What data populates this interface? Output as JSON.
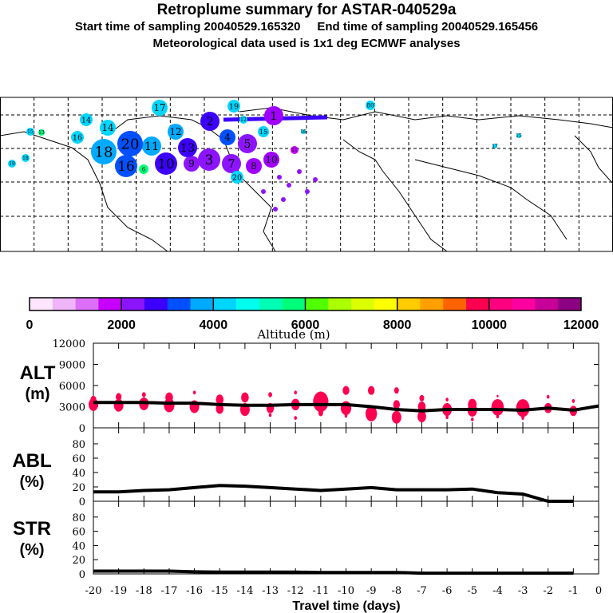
{
  "header": {
    "title": "Retroplume summary for ASTAR-040529a",
    "sampling": "Start time of sampling 20040529.165320     End time of sampling 20040529.165456",
    "met": "Meteorological data used is 1x1 deg ECMWF analyses"
  },
  "map": {
    "markers": [
      "1",
      "2",
      "3",
      "4",
      "5",
      "6",
      "7",
      "8",
      "9",
      "10",
      "11",
      "12",
      "13",
      "14",
      "15",
      "16",
      "17",
      "18",
      "19",
      "20",
      "20",
      "16",
      "18",
      "15",
      "14",
      "12",
      "13",
      "19",
      "80",
      "16",
      "15",
      "17",
      "10",
      "11"
    ]
  },
  "colorbar": {
    "label": "Altitude (m)",
    "ticks": [
      "0",
      "2000",
      "4000",
      "6000",
      "8000",
      "10000",
      "12000"
    ],
    "colors": [
      "#ffe6ff",
      "#f0b4f8",
      "#dc6ef8",
      "#c800ff",
      "#8c14ff",
      "#3c00ff",
      "#0050ff",
      "#00aaff",
      "#00d6ff",
      "#00ffee",
      "#00ffb4",
      "#00ff78",
      "#50ff00",
      "#aaff00",
      "#dcff00",
      "#ffff00",
      "#ffcc00",
      "#ffa000",
      "#ff6400",
      "#ff0050",
      "#ff0080",
      "#ff00a0",
      "#c8009a",
      "#8c0082"
    ]
  },
  "chart_data": [
    {
      "type": "line",
      "panel": "ALT",
      "ylabel": "ALT\n(m)",
      "ylabel_lines": [
        "ALT",
        "(m)"
      ],
      "ylim": [
        0,
        12000
      ],
      "yticks": [
        "0",
        "3000",
        "6000",
        "9000",
        "12000"
      ],
      "x": [
        -20,
        -19,
        -18,
        -17,
        -16,
        -15,
        -14,
        -13,
        -12,
        -11,
        -10,
        -9,
        -8,
        -7,
        -6,
        -5,
        -4,
        -3,
        -2,
        -1,
        0
      ],
      "values": [
        3600,
        3600,
        3600,
        3500,
        3500,
        3300,
        3200,
        3200,
        3300,
        3300,
        3300,
        3000,
        2600,
        2400,
        2600,
        2600,
        2600,
        2500,
        2800,
        2500,
        3100
      ],
      "clusters": [
        [
          -20,
          3300,
          1.0
        ],
        [
          -20,
          4000,
          0.6
        ],
        [
          -19,
          3200,
          1.0
        ],
        [
          -19,
          4400,
          0.6
        ],
        [
          -18,
          3400,
          1.0
        ],
        [
          -18,
          4700,
          0.4
        ],
        [
          -17,
          3200,
          1.1
        ],
        [
          -17,
          4300,
          0.8
        ],
        [
          -16,
          3000,
          1.0
        ],
        [
          -16,
          5000,
          0.3
        ],
        [
          -15,
          2700,
          0.8
        ],
        [
          -15,
          4000,
          0.8
        ],
        [
          -14,
          2600,
          1.0
        ],
        [
          -14,
          4300,
          0.8
        ],
        [
          -13,
          2800,
          0.8
        ],
        [
          -13,
          4700,
          0.4
        ],
        [
          -13,
          1800,
          0.3
        ],
        [
          -12,
          3300,
          0.9
        ],
        [
          -12,
          5000,
          0.3
        ],
        [
          -12,
          1400,
          0.3
        ],
        [
          -11,
          3700,
          1.6
        ],
        [
          -11,
          2100,
          0.5
        ],
        [
          -10,
          2800,
          1.1
        ],
        [
          -10,
          5300,
          0.7
        ],
        [
          -10,
          1700,
          0.3
        ],
        [
          -9,
          2000,
          1.2
        ],
        [
          -9,
          5300,
          0.7
        ],
        [
          -8,
          1500,
          1.0
        ],
        [
          -8,
          3300,
          0.7
        ],
        [
          -8,
          5300,
          0.5
        ],
        [
          -7,
          1600,
          0.9
        ],
        [
          -7,
          3000,
          0.8
        ],
        [
          -7,
          4200,
          0.5
        ],
        [
          -6,
          2600,
          1.0
        ],
        [
          -6,
          1500,
          0.3
        ],
        [
          -6,
          4000,
          0.3
        ],
        [
          -5,
          2500,
          1.0
        ],
        [
          -5,
          3300,
          0.9
        ],
        [
          -5,
          1200,
          0.3
        ],
        [
          -4,
          2900,
          1.3
        ],
        [
          -4,
          1600,
          0.3
        ],
        [
          -4,
          4500,
          0.2
        ],
        [
          -3,
          2800,
          1.4
        ],
        [
          -3,
          1400,
          0.3
        ],
        [
          -2,
          2800,
          0.8
        ],
        [
          -2,
          4400,
          0.3
        ],
        [
          -1,
          2400,
          0.8
        ],
        [
          -1,
          3800,
          0.3
        ]
      ],
      "line_color": "#000000",
      "cluster_color": "#ff0050"
    },
    {
      "type": "line",
      "panel": "ABL",
      "ylabel_lines": [
        "ABL",
        "(%)"
      ],
      "ylim": [
        0,
        100
      ],
      "yticks": [
        "0",
        "20",
        "40",
        "60",
        "80"
      ],
      "x": [
        -20,
        -19,
        -18,
        -17,
        -16,
        -15,
        -14,
        -13,
        -12,
        -11,
        -10,
        -9,
        -8,
        -7,
        -6,
        -5,
        -4,
        -3,
        -2,
        -1
      ],
      "values": [
        13,
        13,
        15,
        16,
        19,
        22,
        21,
        19,
        17,
        15,
        17,
        19,
        16,
        16,
        16,
        17,
        12,
        10,
        0,
        0
      ]
    },
    {
      "type": "line",
      "panel": "STR",
      "ylabel_lines": [
        "STR",
        "(%)"
      ],
      "ylim": [
        0,
        100
      ],
      "yticks": [
        "0",
        "20",
        "40",
        "60",
        "80"
      ],
      "x": [
        -20,
        -19,
        -18,
        -17,
        -16,
        -15,
        -14,
        -13,
        -12,
        -11,
        -10,
        -9,
        -8,
        -7,
        -6,
        -5,
        -4,
        -3,
        -2,
        -1
      ],
      "values": [
        4,
        4,
        4,
        4,
        3,
        2.5,
        2.5,
        2.5,
        2.5,
        2,
        2,
        2,
        2,
        1,
        1,
        1,
        1,
        1,
        1,
        1
      ]
    }
  ],
  "xaxis": {
    "label": "Travel time (days)",
    "ticks": [
      "-20",
      "-19",
      "-18",
      "-17",
      "-16",
      "-15",
      "-14",
      "-13",
      "-12",
      "-11",
      "-10",
      "-9",
      "-8",
      "-7",
      "-6",
      "-5",
      "-4",
      "-3",
      "-2",
      "-1",
      "0"
    ]
  }
}
